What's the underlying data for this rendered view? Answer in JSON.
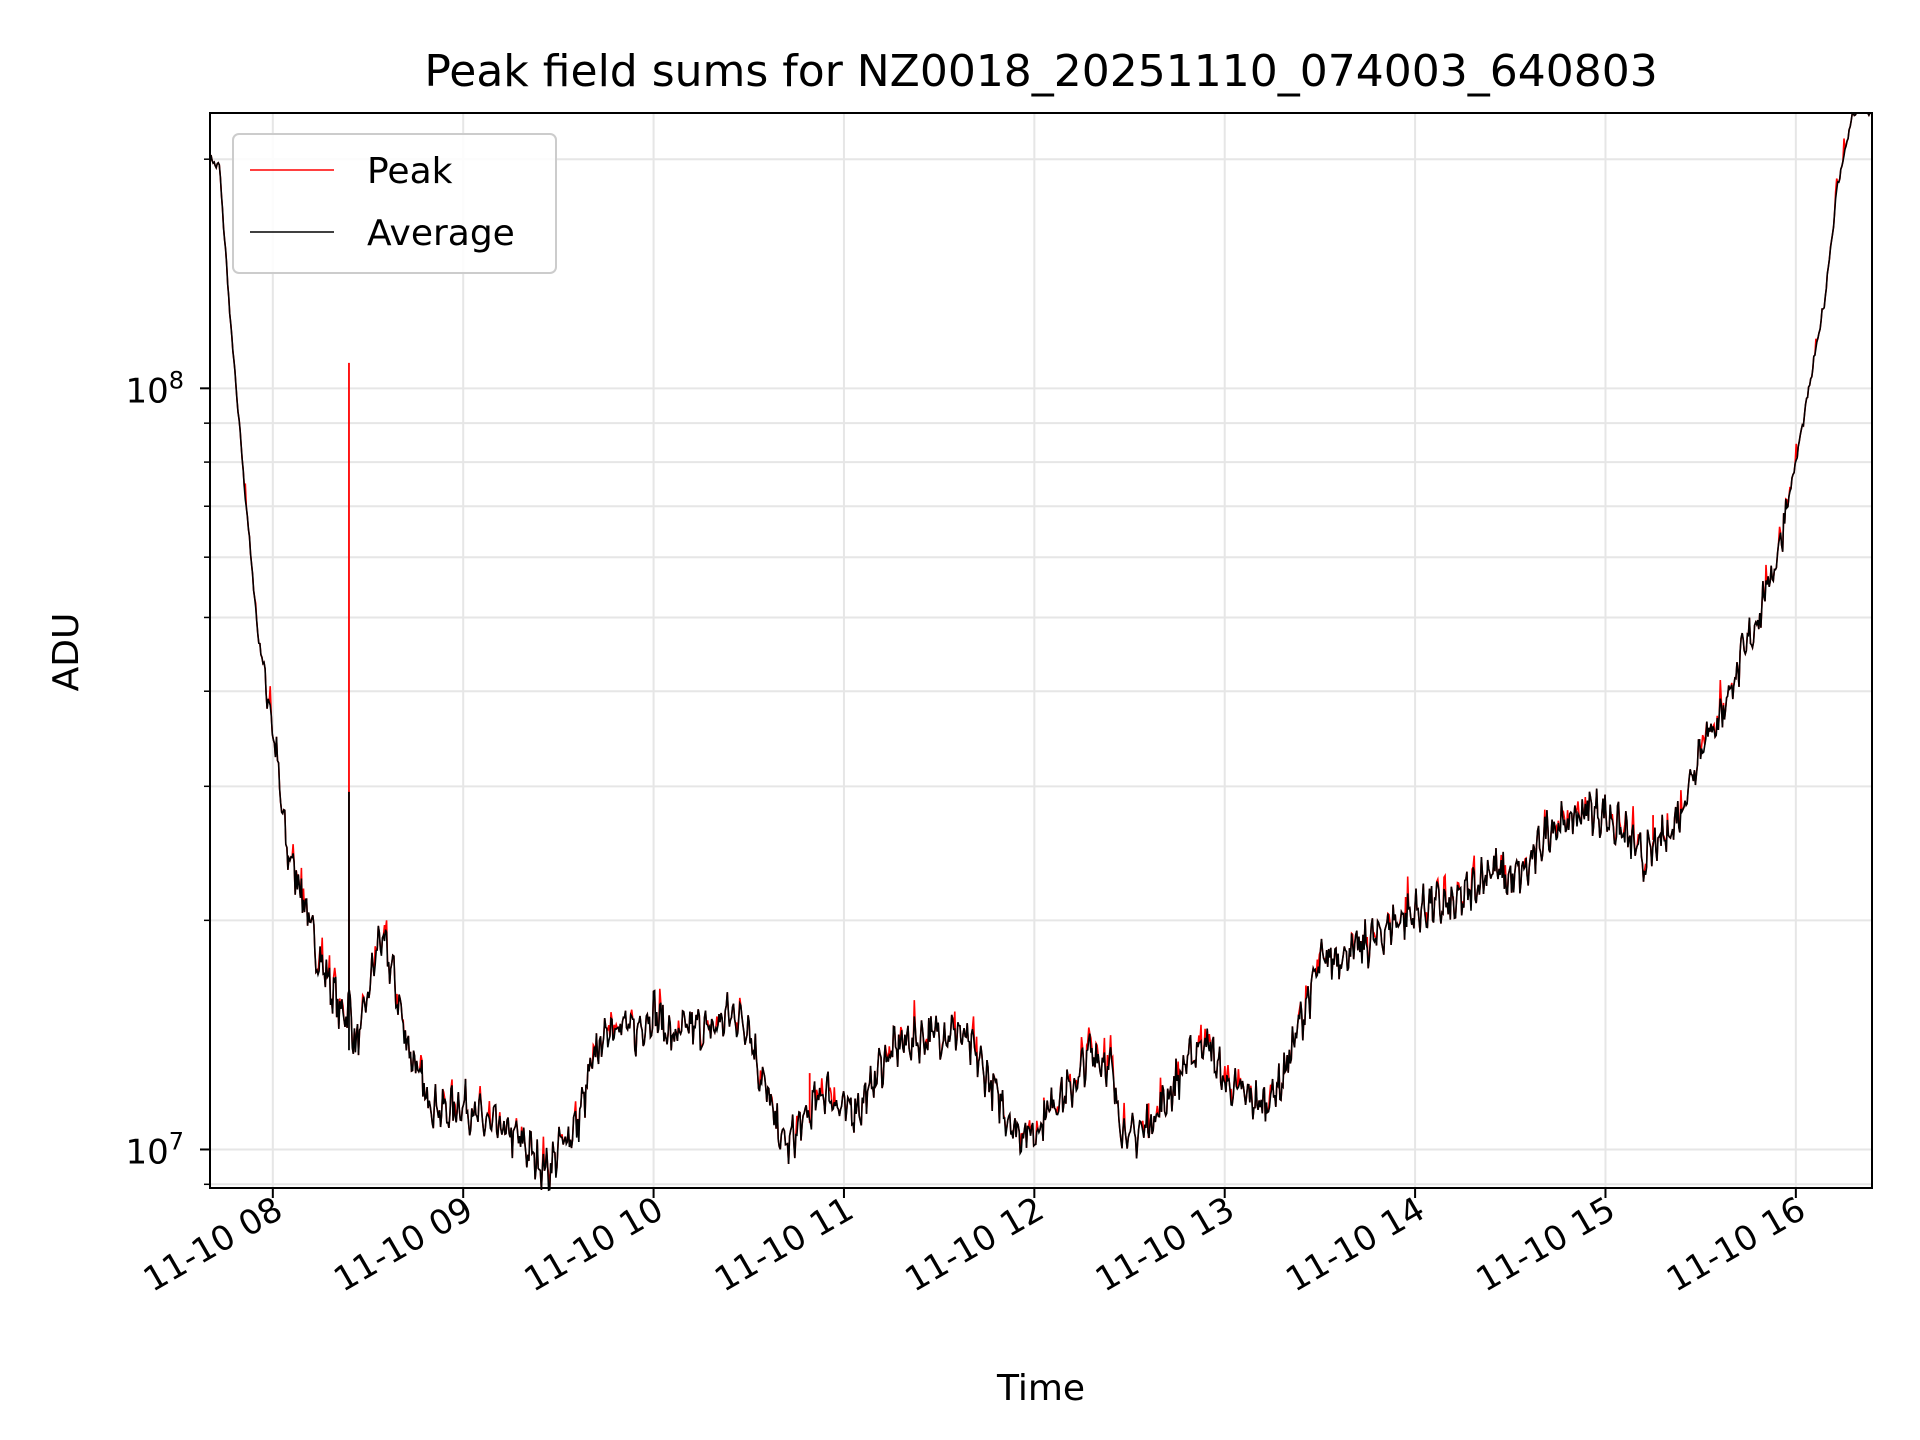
{
  "chart_data": {
    "type": "line",
    "title": "Peak field sums for NZ0018_20251110_074003_640803",
    "xlabel": "Time",
    "ylabel": "ADU",
    "yscale": "log",
    "xlim": [
      7.67,
      16.4
    ],
    "ylim": [
      8900000,
      230000000
    ],
    "grid": true,
    "legend_position": "top-left",
    "x_ticks": [
      8,
      9,
      10,
      11,
      12,
      13,
      14,
      15,
      16
    ],
    "x_tick_labels": [
      "11-10 08",
      "11-10 09",
      "11-10 10",
      "11-10 11",
      "11-10 12",
      "11-10 13",
      "11-10 14",
      "11-10 15",
      "11-10 16"
    ],
    "y_major_ticks": [
      10000000,
      100000000
    ],
    "y_tick_labels": [
      {
        "base": "10",
        "exp": "7"
      },
      {
        "base": "10",
        "exp": "8"
      }
    ],
    "series": [
      {
        "name": "Peak",
        "color": "#ff0000",
        "spikes": [
          {
            "x": 8.4,
            "y": 108000000
          },
          {
            "x": 10.82,
            "y": 12600000
          },
          {
            "x": 11.58,
            "y": 14500000
          },
          {
            "x": 12.05,
            "y": 11700000
          },
          {
            "x": 12.6,
            "y": 11500000
          },
          {
            "x": 14.2,
            "y": 21500000
          },
          {
            "x": 15.25,
            "y": 27500000
          }
        ]
      },
      {
        "name": "Average",
        "color": "#000000",
        "x": [
          7.67,
          7.72,
          7.78,
          7.85,
          7.92,
          8.0,
          8.07,
          8.15,
          8.22,
          8.3,
          8.36,
          8.4,
          8.44,
          8.5,
          8.56,
          8.62,
          8.7,
          8.8,
          8.9,
          9.0,
          9.1,
          9.2,
          9.3,
          9.4,
          9.45,
          9.52,
          9.6,
          9.7,
          9.8,
          9.9,
          10.0,
          10.1,
          10.2,
          10.3,
          10.4,
          10.5,
          10.55,
          10.6,
          10.65,
          10.7,
          10.8,
          10.9,
          11.0,
          11.1,
          11.2,
          11.3,
          11.4,
          11.5,
          11.6,
          11.7,
          11.8,
          11.9,
          12.0,
          12.1,
          12.2,
          12.3,
          12.4,
          12.45,
          12.5,
          12.6,
          12.7,
          12.8,
          12.9,
          13.0,
          13.1,
          13.2,
          13.3,
          13.4,
          13.5,
          13.6,
          13.7,
          13.8,
          13.9,
          14.0,
          14.1,
          14.2,
          14.3,
          14.4,
          14.5,
          14.6,
          14.7,
          14.8,
          14.9,
          15.0,
          15.1,
          15.2,
          15.3,
          15.35,
          15.4,
          15.5,
          15.6,
          15.7,
          15.8,
          15.9,
          16.0,
          16.07,
          16.15,
          16.22,
          16.3,
          16.4
        ],
        "values": [
          200000000,
          195000000,
          120000000,
          75000000,
          48000000,
          36000000,
          25000000,
          22000000,
          18500000,
          16500000,
          15000000,
          15500000,
          13500000,
          16000000,
          19000000,
          17500000,
          14000000,
          11800000,
          11200000,
          11500000,
          10900000,
          10600000,
          10300000,
          9600000,
          9400000,
          10200000,
          10800000,
          13500000,
          14800000,
          14200000,
          15200000,
          14000000,
          14500000,
          14300000,
          15100000,
          14600000,
          12800000,
          11800000,
          10600000,
          10100000,
          11000000,
          12000000,
          11200000,
          11500000,
          13000000,
          13800000,
          14000000,
          14200000,
          14300000,
          13200000,
          11800000,
          10600000,
          10500000,
          11600000,
          12000000,
          13500000,
          12800000,
          11000000,
          10300000,
          10800000,
          11700000,
          13000000,
          14000000,
          12200000,
          11800000,
          11400000,
          12300000,
          14800000,
          17500000,
          18000000,
          18300000,
          19000000,
          20000000,
          20500000,
          21000000,
          20800000,
          22000000,
          23500000,
          22500000,
          23500000,
          26500000,
          26800000,
          28000000,
          27500000,
          26000000,
          24000000,
          25500000,
          26500000,
          28000000,
          34000000,
          37000000,
          43000000,
          50000000,
          60000000,
          80000000,
          100000000,
          130000000,
          185000000,
          230000000,
          232000000
        ]
      }
    ]
  }
}
